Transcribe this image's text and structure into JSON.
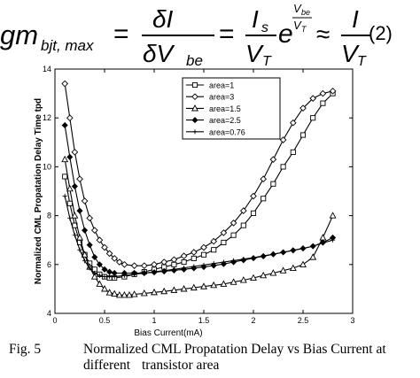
{
  "equation": {
    "lhs_main": "gm",
    "lhs_sub": "bjt, max",
    "eq1": "=",
    "frac1_num": "δI",
    "frac1_den": "δV",
    "frac1_den_sub": "be",
    "eq2": "=",
    "frac2_num": "I",
    "frac2_num_sub": "s",
    "frac2_den": "V",
    "frac2_den_sub": "T",
    "exp_base": "e",
    "exp_num": "V",
    "exp_num_sub": "be",
    "exp_den": "V",
    "exp_den_sub": "T",
    "approx": "≈",
    "frac3_num": "I",
    "frac3_den": "V",
    "frac3_den_sub": "T",
    "number": "(2)"
  },
  "caption": {
    "label": "Fig. 5",
    "line1": "Normalized CML Propatation Delay vs Bias Current at different",
    "line2": "transistor area"
  },
  "chart_data": {
    "type": "line",
    "title": "",
    "xlabel": "Bias Current(mA)",
    "ylabel": "Normalized CML Propatation Delay Time tpd",
    "xlim": [
      0,
      3
    ],
    "ylim": [
      4,
      14
    ],
    "xticks": [
      "0",
      "0.5",
      "1",
      "1.5",
      "2",
      "2.5",
      "3"
    ],
    "yticks": [
      "4",
      "6",
      "8",
      "10",
      "12",
      "14"
    ],
    "grid": false,
    "legend_position": "top-right",
    "series": [
      {
        "name": "area=1",
        "marker": "square",
        "x": [
          0.1,
          0.15,
          0.2,
          0.25,
          0.3,
          0.35,
          0.4,
          0.45,
          0.5,
          0.55,
          0.6,
          0.7,
          0.8,
          0.9,
          1.0,
          1.1,
          1.2,
          1.3,
          1.4,
          1.5,
          1.6,
          1.7,
          1.8,
          1.9,
          2.0,
          2.1,
          2.2,
          2.3,
          2.4,
          2.5,
          2.6,
          2.7,
          2.8
        ],
        "y": [
          9.6,
          8.5,
          7.6,
          6.9,
          6.4,
          6.05,
          5.8,
          5.6,
          5.5,
          5.45,
          5.45,
          5.5,
          5.6,
          5.7,
          5.8,
          5.9,
          6.0,
          6.1,
          6.25,
          6.4,
          6.6,
          6.9,
          7.2,
          7.6,
          8.1,
          8.7,
          9.3,
          10.0,
          10.6,
          11.3,
          12.0,
          12.6,
          13.0
        ]
      },
      {
        "name": "area=3",
        "marker": "diamond",
        "x": [
          0.1,
          0.15,
          0.2,
          0.25,
          0.3,
          0.35,
          0.4,
          0.45,
          0.5,
          0.55,
          0.6,
          0.65,
          0.7,
          0.8,
          0.9,
          1.0,
          1.1,
          1.2,
          1.3,
          1.4,
          1.5,
          1.6,
          1.7,
          1.8,
          1.9,
          2.0,
          2.1,
          2.2,
          2.3,
          2.4,
          2.5,
          2.6,
          2.7,
          2.8
        ],
        "y": [
          13.4,
          12.0,
          10.6,
          9.5,
          8.6,
          7.9,
          7.4,
          7.0,
          6.7,
          6.45,
          6.25,
          6.1,
          6.0,
          5.95,
          5.95,
          6.0,
          6.1,
          6.2,
          6.35,
          6.5,
          6.7,
          6.95,
          7.3,
          7.7,
          8.2,
          8.8,
          9.5,
          10.3,
          11.1,
          11.8,
          12.4,
          12.8,
          13.0,
          13.1
        ]
      },
      {
        "name": "area=1.5",
        "marker": "triangle",
        "x": [
          0.1,
          0.15,
          0.2,
          0.25,
          0.3,
          0.35,
          0.4,
          0.45,
          0.5,
          0.55,
          0.6,
          0.65,
          0.7,
          0.75,
          0.8,
          0.9,
          1.0,
          1.1,
          1.2,
          1.3,
          1.4,
          1.5,
          1.6,
          1.7,
          1.8,
          1.9,
          2.0,
          2.1,
          2.2,
          2.3,
          2.4,
          2.5,
          2.6,
          2.7,
          2.8
        ],
        "y": [
          10.3,
          9.1,
          8.0,
          7.1,
          6.4,
          5.9,
          5.5,
          5.2,
          5.0,
          4.85,
          4.8,
          4.75,
          4.75,
          4.75,
          4.78,
          4.82,
          4.86,
          4.9,
          4.95,
          5.0,
          5.05,
          5.1,
          5.15,
          5.2,
          5.28,
          5.36,
          5.45,
          5.55,
          5.65,
          5.75,
          5.85,
          6.0,
          6.3,
          7.1,
          8.0
        ]
      },
      {
        "name": "area=2.5",
        "marker": "filled-diamond",
        "x": [
          0.1,
          0.15,
          0.2,
          0.25,
          0.3,
          0.35,
          0.4,
          0.45,
          0.5,
          0.55,
          0.6,
          0.7,
          0.8,
          0.9,
          1.0,
          1.1,
          1.2,
          1.3,
          1.4,
          1.5,
          1.6,
          1.7,
          1.8,
          1.9,
          2.0,
          2.1,
          2.2,
          2.3,
          2.4,
          2.5,
          2.6,
          2.7,
          2.8
        ],
        "y": [
          11.7,
          10.4,
          9.2,
          8.2,
          7.4,
          6.8,
          6.3,
          6.0,
          5.8,
          5.7,
          5.65,
          5.65,
          5.65,
          5.65,
          5.68,
          5.72,
          5.76,
          5.8,
          5.85,
          5.9,
          5.96,
          6.02,
          6.1,
          6.18,
          6.26,
          6.34,
          6.42,
          6.5,
          6.58,
          6.66,
          6.75,
          6.9,
          7.1
        ]
      },
      {
        "name": "area=0.76",
        "marker": "plus",
        "x": [
          0.1,
          0.15,
          0.2,
          0.25,
          0.3,
          0.35,
          0.4,
          0.45,
          0.5,
          0.55,
          0.6,
          0.7,
          0.8,
          0.9,
          1.0,
          1.1,
          1.2,
          1.3,
          1.4,
          1.5,
          1.6,
          1.7,
          1.8,
          1.9,
          2.0,
          2.1,
          2.2,
          2.3,
          2.4,
          2.5,
          2.6,
          2.7,
          2.8
        ],
        "y": [
          8.8,
          7.9,
          7.2,
          6.6,
          6.15,
          5.85,
          5.65,
          5.55,
          5.5,
          5.5,
          5.5,
          5.55,
          5.6,
          5.65,
          5.7,
          5.75,
          5.8,
          5.86,
          5.92,
          5.98,
          6.04,
          6.1,
          6.16,
          6.22,
          6.28,
          6.35,
          6.42,
          6.5,
          6.58,
          6.66,
          6.75,
          6.88,
          7.0
        ]
      }
    ]
  }
}
